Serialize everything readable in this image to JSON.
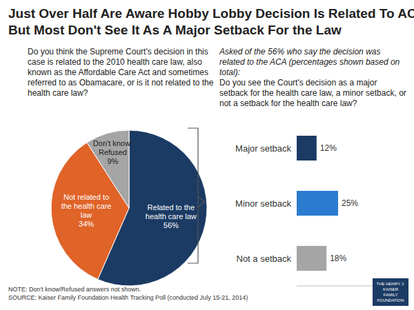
{
  "title": [
    "Just Over Half Are Aware Hobby Lobby Decision Is Related To ACA,",
    "But Most Don't See It As A Major Setback For the Law"
  ],
  "note": "NOTE: Don't know/Refused answers not shown.",
  "source": "SOURCE: Kaiser Family Foundation Health Tracking Poll (conducted July 15-21, 2014)",
  "logo": [
    "THE HENRY J.",
    "KAISER",
    "FAMILY",
    "FOUNDATION"
  ],
  "chart_data": [
    {
      "type": "pie",
      "subtitle": "Do you think the Supreme Court's decision in this case is related to the 2010 health care law, also known as the Affordable Care Act and sometimes referred to as Obamacare, or is it not related to the health care law?",
      "categories": [
        "Related to the health care law",
        "Not related to the health care law",
        "Don't know/ Refused"
      ],
      "values": [
        56,
        34,
        9
      ],
      "value_labels": [
        "56%",
        "34%",
        "9%"
      ],
      "colors": [
        "#1b3b64",
        "#e06328",
        "#a5a5a5"
      ],
      "data_labels": true
    },
    {
      "type": "bar",
      "orientation": "horizontal",
      "annotation": "Asked of the 56% who say the decision was related to the ACA (percentages shown based on total):",
      "subtitle": "Do you see the Court's decision as a major setback for the health care law, a minor setback, or not a setback for the health care law?",
      "categories": [
        "Major setback",
        "Minor setback",
        "Not a setback"
      ],
      "values": [
        12,
        25,
        18
      ],
      "value_labels": [
        "12%",
        "25%",
        "18%"
      ],
      "colors": [
        "#1b3b64",
        "#2b7bd0",
        "#a5a5a5"
      ],
      "xlim": [
        0,
        50
      ],
      "tick_labels": "y",
      "data_labels": true
    }
  ]
}
